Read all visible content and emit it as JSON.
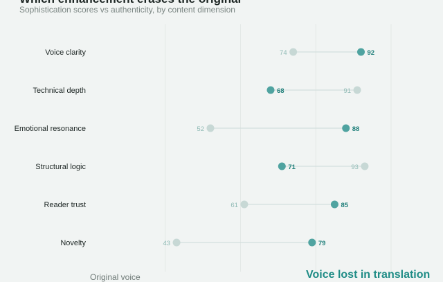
{
  "page": {
    "title": "Which enhancement erases the original",
    "subtitle": "Sophistication scores vs authenticity, by content dimension",
    "footer_left": "Original voice",
    "footer_right": "Voice lost in translation"
  },
  "chart_data": {
    "type": "dumbbell",
    "title": "Which enhancement erases the original",
    "subtitle": "Sophistication scores vs authenticity, by content dimension",
    "categories": [
      "Voice clarity",
      "Technical depth",
      "Emotional resonance",
      "Structural logic",
      "Reader trust",
      "Novelty"
    ],
    "series": [
      {
        "values": [
          74,
          91,
          52,
          93,
          61,
          43
        ]
      },
      {
        "values": [
          92,
          68,
          88,
          71,
          85,
          79
        ]
      }
    ],
    "xlim": [
      20,
      100
    ],
    "grid": true,
    "colors": {
      "series_a": "#c7d8d5",
      "series_b": "#4fa3a0",
      "series_b_label": "#1f7f7a",
      "series_a_label": "#8fbab5",
      "connector": "#d4dfdd",
      "grid": "#e3e8e6",
      "category_label": "#1d2624"
    }
  }
}
